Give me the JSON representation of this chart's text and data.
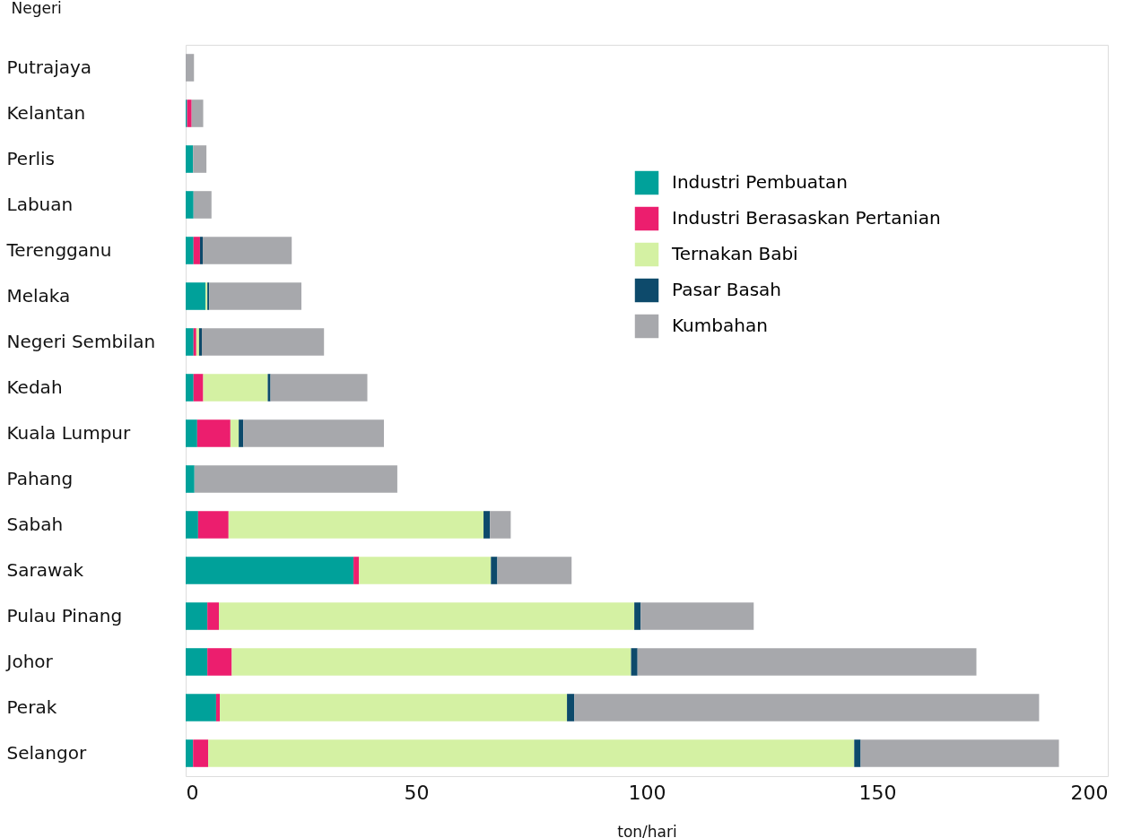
{
  "chart_data": {
    "type": "bar",
    "orientation": "horizontal",
    "stacked": true,
    "ylabel": "Negeri",
    "xlabel": "ton/hari",
    "legend": "top right",
    "grid": false,
    "categories": [
      "Putrajaya",
      "Kelantan",
      "Perlis",
      "Labuan",
      "Terengganu",
      "Melaka",
      "Negeri Sembilan",
      "Kedah",
      "Kuala Lumpur",
      "Pahang",
      "Sabah",
      "Sarawak",
      "Pulau Pinang",
      "Johor",
      "Perak",
      "Selangor"
    ],
    "xlim": [
      0,
      200
    ],
    "xticks": [
      0,
      50,
      100,
      150,
      200
    ],
    "series": [
      {
        "name": "Industri Pembuatan",
        "color": "#00a19a",
        "values": [
          null,
          0.3,
          1.6,
          1.7,
          1.7,
          4.3,
          1.7,
          1.7,
          2.5,
          1.9,
          2.7,
          36.4,
          4.7,
          4.7,
          6.6,
          1.6
        ]
      },
      {
        "name": "Industri Berasaskan Pertanian",
        "color": "#ec1e6e",
        "values": [
          null,
          1.0,
          null,
          null,
          1.4,
          null,
          0.6,
          2.1,
          7.2,
          null,
          6.6,
          1.2,
          2.5,
          5.3,
          0.8,
          3.3
        ]
      },
      {
        "name": "Ternakan Babi",
        "color": "#d4f1a3",
        "values": [
          null,
          null,
          null,
          null,
          null,
          0.4,
          0.6,
          14.0,
          1.8,
          null,
          55.3,
          28.6,
          90.1,
          86.6,
          75.3,
          140.1
        ]
      },
      {
        "name": "Pasar Basah",
        "color": "#0d4a6b",
        "values": [
          null,
          null,
          null,
          null,
          0.6,
          0.4,
          0.6,
          0.6,
          1.0,
          null,
          1.4,
          1.4,
          1.4,
          1.4,
          1.6,
          1.4
        ]
      },
      {
        "name": "Kumbahan",
        "color": "#a7a8ac",
        "values": [
          1.8,
          2.5,
          2.9,
          3.9,
          19.3,
          20.0,
          26.5,
          21.0,
          30.5,
          44.0,
          4.5,
          16.1,
          24.5,
          73.5,
          100.8,
          43.0
        ]
      }
    ]
  }
}
